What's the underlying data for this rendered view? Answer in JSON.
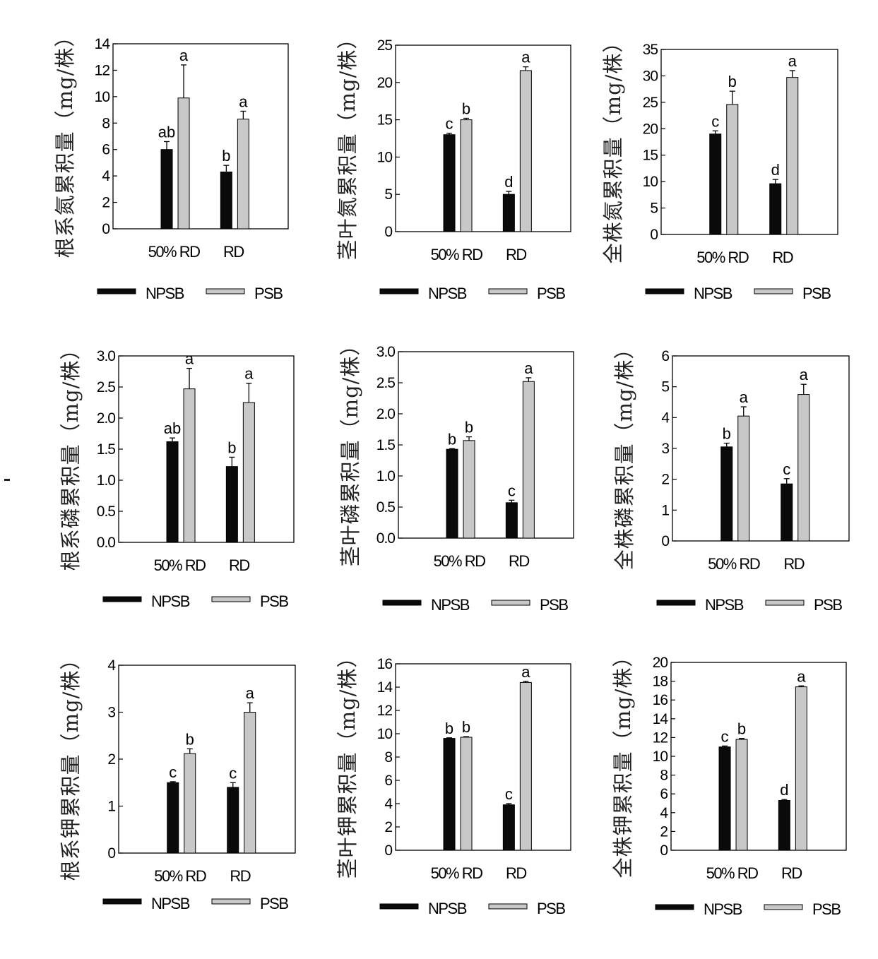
{
  "legend": {
    "npsb": "NPSB",
    "psb": "PSB"
  },
  "colors": {
    "npsb": "#0a0a0a",
    "psb": "#c8c8c8"
  },
  "chart_data": [
    {
      "type": "bar",
      "ylabel": "根系氮累积量（mg/株）",
      "ylim": [
        0,
        14
      ],
      "ticks": [
        0,
        2,
        4,
        6,
        8,
        10,
        12,
        14
      ],
      "categories": [
        "50% RD",
        "RD"
      ],
      "series": [
        {
          "name": "NPSB",
          "values": [
            6.0,
            4.3
          ],
          "errors": [
            0.6,
            0.5
          ],
          "letters": [
            "ab",
            "b"
          ]
        },
        {
          "name": "PSB",
          "values": [
            9.9,
            8.3
          ],
          "errors": [
            2.5,
            0.6
          ],
          "letters": [
            "a",
            "a"
          ]
        }
      ]
    },
    {
      "type": "bar",
      "ylabel": "茎叶氮累积量（mg/株）",
      "ylim": [
        0,
        25
      ],
      "ticks": [
        0,
        5,
        10,
        15,
        20,
        25
      ],
      "categories": [
        "50% RD",
        "RD"
      ],
      "series": [
        {
          "name": "NPSB",
          "values": [
            13.0,
            5.0
          ],
          "errors": [
            0.2,
            0.4
          ],
          "letters": [
            "c",
            "d"
          ]
        },
        {
          "name": "PSB",
          "values": [
            15.0,
            21.6
          ],
          "errors": [
            0.2,
            0.5
          ],
          "letters": [
            "b",
            "a"
          ]
        }
      ]
    },
    {
      "type": "bar",
      "ylabel": "全株氮累积量（mg/株）",
      "ylim": [
        0,
        35
      ],
      "ticks": [
        0,
        5,
        10,
        15,
        20,
        25,
        30,
        35
      ],
      "categories": [
        "50% RD",
        "RD"
      ],
      "series": [
        {
          "name": "NPSB",
          "values": [
            19.0,
            9.6
          ],
          "errors": [
            0.6,
            0.8
          ],
          "letters": [
            "c",
            "d"
          ]
        },
        {
          "name": "PSB",
          "values": [
            24.6,
            29.7
          ],
          "errors": [
            2.5,
            1.3
          ],
          "letters": [
            "b",
            "a"
          ]
        }
      ]
    },
    {
      "type": "bar",
      "ylabel": "根系磷累积量（mg/株）",
      "ylim": [
        0,
        3.0
      ],
      "ticks": [
        0.0,
        0.5,
        1.0,
        1.5,
        2.0,
        2.5,
        3.0
      ],
      "categories": [
        "50% RD",
        "RD"
      ],
      "series": [
        {
          "name": "NPSB",
          "values": [
            1.62,
            1.22
          ],
          "errors": [
            0.06,
            0.15
          ],
          "letters": [
            "ab",
            "b"
          ]
        },
        {
          "name": "PSB",
          "values": [
            2.47,
            2.25
          ],
          "errors": [
            0.33,
            0.31
          ],
          "letters": [
            "a",
            "a"
          ]
        }
      ]
    },
    {
      "type": "bar",
      "ylabel": "茎叶磷累积量（mg/株）",
      "ylim": [
        0,
        3.0
      ],
      "ticks": [
        0.0,
        0.5,
        1.0,
        1.5,
        2.0,
        2.5,
        3.0
      ],
      "categories": [
        "50% RD",
        "RD"
      ],
      "series": [
        {
          "name": "NPSB",
          "values": [
            1.43,
            0.57
          ],
          "errors": [
            0.01,
            0.04
          ],
          "letters": [
            "b",
            "c"
          ]
        },
        {
          "name": "PSB",
          "values": [
            1.57,
            2.52
          ],
          "errors": [
            0.06,
            0.06
          ],
          "letters": [
            "b",
            "a"
          ]
        }
      ]
    },
    {
      "type": "bar",
      "ylabel": "全株磷累积量（mg/株）",
      "ylim": [
        0,
        6
      ],
      "ticks": [
        0,
        1,
        2,
        3,
        4,
        5,
        6
      ],
      "categories": [
        "50% RD",
        "RD"
      ],
      "series": [
        {
          "name": "NPSB",
          "values": [
            3.05,
            1.85
          ],
          "errors": [
            0.12,
            0.17
          ],
          "letters": [
            "b",
            "c"
          ]
        },
        {
          "name": "PSB",
          "values": [
            4.05,
            4.75
          ],
          "errors": [
            0.3,
            0.33
          ],
          "letters": [
            "a",
            "a"
          ]
        }
      ]
    },
    {
      "type": "bar",
      "ylabel": "根系钾累积量（mg/株）",
      "ylim": [
        0,
        4
      ],
      "ticks": [
        0,
        1,
        2,
        3,
        4
      ],
      "categories": [
        "50% RD",
        "RD"
      ],
      "series": [
        {
          "name": "NPSB",
          "values": [
            1.5,
            1.4
          ],
          "errors": [
            0.02,
            0.1
          ],
          "letters": [
            "c",
            "c"
          ]
        },
        {
          "name": "PSB",
          "values": [
            2.12,
            3.0
          ],
          "errors": [
            0.1,
            0.2
          ],
          "letters": [
            "b",
            "a"
          ]
        }
      ]
    },
    {
      "type": "bar",
      "ylabel": "茎叶钾累积量（mg/株）",
      "ylim": [
        0,
        16
      ],
      "ticks": [
        0,
        2,
        4,
        6,
        8,
        10,
        12,
        14,
        16
      ],
      "categories": [
        "50% RD",
        "RD"
      ],
      "series": [
        {
          "name": "NPSB",
          "values": [
            9.6,
            3.9
          ],
          "errors": [
            0.05,
            0.1
          ],
          "letters": [
            "b",
            "c"
          ]
        },
        {
          "name": "PSB",
          "values": [
            9.7,
            14.4
          ],
          "errors": [
            0.05,
            0.1
          ],
          "letters": [
            "b",
            "a"
          ]
        }
      ]
    },
    {
      "type": "bar",
      "ylabel": "全株钾累积量（mg/株）",
      "ylim": [
        0,
        20
      ],
      "ticks": [
        0,
        2,
        4,
        6,
        8,
        10,
        12,
        14,
        16,
        18,
        20
      ],
      "categories": [
        "50% RD",
        "RD"
      ],
      "series": [
        {
          "name": "NPSB",
          "values": [
            11.0,
            5.3
          ],
          "errors": [
            0.1,
            0.1
          ],
          "letters": [
            "c",
            "d"
          ]
        },
        {
          "name": "PSB",
          "values": [
            11.8,
            17.4
          ],
          "errors": [
            0.1,
            0.1
          ],
          "letters": [
            "b",
            "a"
          ]
        }
      ]
    }
  ]
}
